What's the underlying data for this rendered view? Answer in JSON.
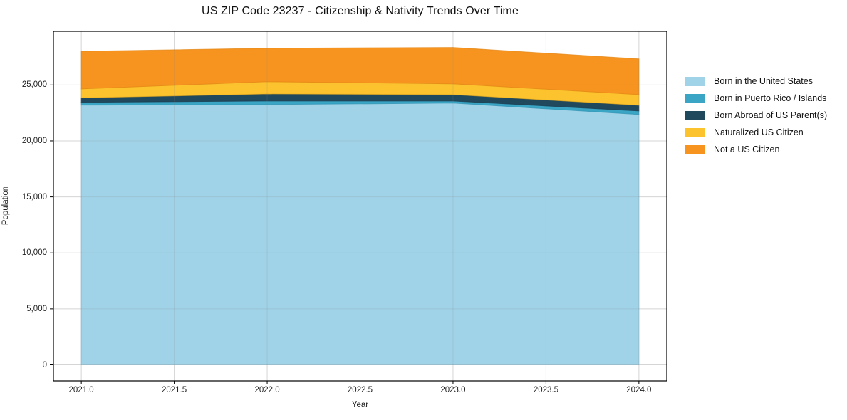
{
  "title": "US ZIP Code 23237 - Citizenship & Nativity Trends Over Time",
  "chart_data": {
    "type": "area",
    "stacked": true,
    "title": "US ZIP Code 23237 - Citizenship & Nativity Trends Over Time",
    "xlabel": "Year",
    "ylabel": "Population",
    "x": [
      2021,
      2022,
      2023,
      2024
    ],
    "series": [
      {
        "name": "Born in the United States",
        "color": "#a0d3e8",
        "edge": "#8fc3dc",
        "values": [
          23200,
          23250,
          23380,
          22360
        ]
      },
      {
        "name": "Born in Puerto Rico / Islands",
        "color": "#3aa5c5",
        "edge": "#2f93b2",
        "values": [
          250,
          320,
          190,
          320
        ]
      },
      {
        "name": "Born Abroad of US Parent(s)",
        "color": "#21495e",
        "edge": "#193a4b",
        "values": [
          400,
          630,
          570,
          510
        ]
      },
      {
        "name": "Naturalized US Citizen",
        "color": "#fdc32f",
        "edge": "#edb11e",
        "values": [
          800,
          1090,
          960,
          950
        ]
      },
      {
        "name": "Not a US Citizen",
        "color": "#f7941f",
        "edge": "#e28413",
        "values": [
          3350,
          2990,
          3250,
          3190
        ]
      }
    ],
    "xlim": [
      2020.85,
      2024.15
    ],
    "ylim": [
      -1430,
      29790
    ],
    "x_ticks": [
      {
        "v": 2021.0,
        "label": "2021.0"
      },
      {
        "v": 2021.5,
        "label": "2021.5"
      },
      {
        "v": 2022.0,
        "label": "2022.0"
      },
      {
        "v": 2022.5,
        "label": "2022.5"
      },
      {
        "v": 2023.0,
        "label": "2023.0"
      },
      {
        "v": 2023.5,
        "label": "2023.5"
      },
      {
        "v": 2024.0,
        "label": "2024.0"
      }
    ],
    "y_ticks": [
      {
        "v": 0,
        "label": "0"
      },
      {
        "v": 5000,
        "label": "5,000"
      },
      {
        "v": 10000,
        "label": "10,000"
      },
      {
        "v": 15000,
        "label": "15,000"
      },
      {
        "v": 20000,
        "label": "20,000"
      },
      {
        "v": 25000,
        "label": "25,000"
      }
    ],
    "grid": true,
    "legend_position": "right-outside"
  },
  "colors": {
    "background": "#ffffff",
    "grid": "#e8e8e8",
    "grid_overlay": "rgba(130,130,130,0.18)",
    "spine": "#000000",
    "tick": "#000000"
  }
}
